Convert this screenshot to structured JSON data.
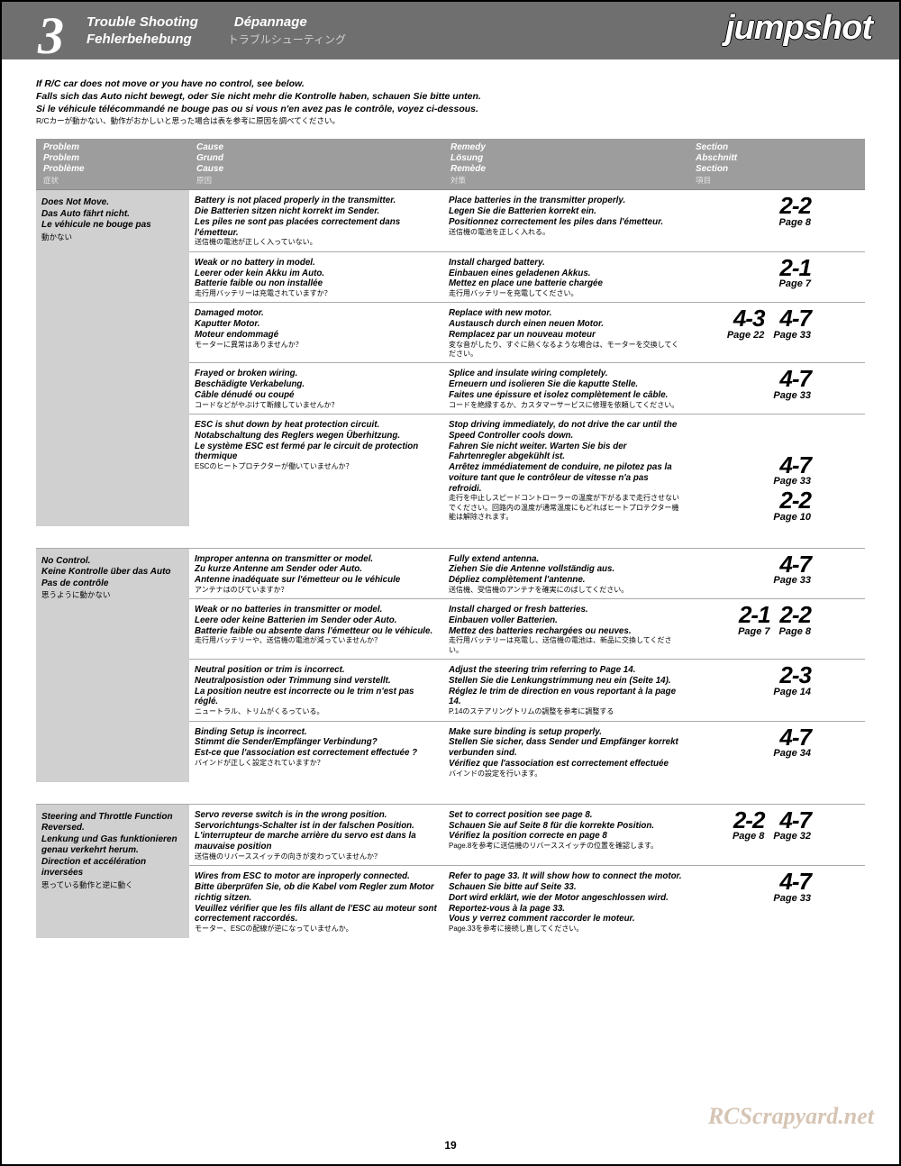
{
  "header": {
    "number": "3",
    "titles_row1": [
      "Trouble Shooting",
      "Dépannage"
    ],
    "titles_row2": [
      "Fehlerbehebung",
      "トラブルシューティング"
    ],
    "logo": "jumpshot"
  },
  "intro": {
    "en": "If R/C car does not move or you have no control, see below.",
    "de": "Falls sich das Auto nicht bewegt, oder Sie nicht mehr die Kontrolle haben, schauen Sie bitte unten.",
    "fr": "Si le véhicule télécommandé ne bouge pas ou si vous n'en avez pas le contrôle, voyez ci-dessous.",
    "jp": "R/Cカーが動かない、動作がおかしいと思った場合は表を参考に原因を調べてください。"
  },
  "columns": {
    "problem": [
      "Problem",
      "Problem",
      "Problème",
      "症状"
    ],
    "cause": [
      "Cause",
      "Grund",
      "Cause",
      "原因"
    ],
    "remedy": [
      "Remedy",
      "Lösung",
      "Remède",
      "対策"
    ],
    "section": [
      "Section",
      "Abschnitt",
      "Section",
      "項目"
    ]
  },
  "groups": [
    {
      "problem": {
        "b": [
          "Does Not Move.",
          "Das Auto fährt nicht.",
          "Le véhicule ne bouge pas"
        ],
        "j": "動かない"
      },
      "rows": [
        {
          "cause": {
            "b": [
              "Battery is not placed properly in the transmitter.",
              "Die Batterien sitzen nicht korrekt im Sender.",
              "Les piles ne sont pas placées correctement dans l'émetteur."
            ],
            "j": "送信機の電池が正しく入っていない。"
          },
          "remedy": {
            "b": [
              "Place batteries in the transmitter properly.",
              "Legen Sie die Batterien korrekt ein.",
              "Positionnez correctement les piles dans l'émetteur."
            ],
            "j": "送信機の電池を正しく入れる。"
          },
          "sections": [
            {
              "num": "2-2",
              "page": "Page 8"
            }
          ]
        },
        {
          "cause": {
            "b": [
              "Weak or no battery in model.",
              "Leerer oder kein Akku im Auto.",
              "Batterie faible ou non installée"
            ],
            "j": "走行用バッテリーは充電されていますか？"
          },
          "remedy": {
            "b": [
              "Install charged battery.",
              "Einbauen eines geladenen Akkus.",
              "Mettez en place une batterie chargée"
            ],
            "j": "走行用バッテリーを充電してください。"
          },
          "sections": [
            {
              "num": "2-1",
              "page": "Page 7"
            }
          ]
        },
        {
          "cause": {
            "b": [
              "Damaged motor.",
              "Kaputter Motor.",
              "Moteur endommagé"
            ],
            "j": "モーターに異常はありませんか？"
          },
          "remedy": {
            "b": [
              "Replace with new motor.",
              "Austausch durch einen neuen Motor.",
              "Remplacez par un nouveau moteur"
            ],
            "j": "変な音がしたり、すぐに熱くなるような場合は、モーターを交換してください。"
          },
          "sections": [
            {
              "num": "4-3",
              "page": "Page 22"
            },
            {
              "num": "4-7",
              "page": "Page 33"
            }
          ]
        },
        {
          "cause": {
            "b": [
              "Frayed or broken wiring.",
              "Beschädigte Verkabelung.",
              "Câble dénudé ou coupé"
            ],
            "j": "コードなどがやぶけて断線していませんか？"
          },
          "remedy": {
            "b": [
              "Splice and insulate wiring completely.",
              "Erneuern und isolieren Sie die kaputte Stelle.",
              "Faites une épissure et isolez complètement le câble."
            ],
            "j": "コードを絶縁するか、カスタマーサービスに修理を依頼してください。"
          },
          "sections": [
            {
              "num": "4-7",
              "page": "Page 33"
            }
          ]
        },
        {
          "cause": {
            "b": [
              "ESC is shut down by heat protection circuit.",
              "Notabschaltung des Reglers wegen Überhitzung.",
              "Le système ESC est fermé par le circuit de protection thermique"
            ],
            "j": "ESCのヒートプロテクターが働いていませんか？"
          },
          "remedy": {
            "b": [
              "Stop driving immediately, do not drive the car until the Speed Controller cools down.",
              "Fahren Sie nicht weiter. Warten Sie bis der Fahrtenregler abgekühlt ist.",
              "Arrêtez immédiatement de conduire, ne pilotez pas la voiture tant que le contrôleur de vitesse n'a pas refroidi."
            ],
            "j": "走行を中止しスピードコントローラーの温度が下がるまで走行させないでください。回路内の温度が通常温度にもどればヒートプロテクター機能は解除されます。"
          },
          "sections": [
            {
              "num": "4-7",
              "page": "Page 33"
            },
            {
              "num": "2-2",
              "page": "Page 10"
            }
          ],
          "sections_stacked": true
        }
      ]
    },
    {
      "problem": {
        "b": [
          "No Control.",
          "Keine Kontrolle über das Auto Pas de contrôle"
        ],
        "j": "思うように動かない"
      },
      "rows": [
        {
          "cause": {
            "b": [
              "Improper antenna on transmitter or model.",
              "Zu kurze Antenne am Sender oder Auto.",
              "Antenne inadéquate sur l'émetteur ou le véhicule"
            ],
            "j": "アンテナはのびていますか？"
          },
          "remedy": {
            "b": [
              "Fully extend antenna.",
              "Ziehen Sie die Antenne vollständig aus.",
              "Dépliez complètement l'antenne."
            ],
            "j": "送信機、受信機のアンテナを確実にのばしてください。"
          },
          "sections": [
            {
              "num": "4-7",
              "page": "Page 33"
            }
          ]
        },
        {
          "cause": {
            "b": [
              "Weak or no batteries in transmitter or model.",
              "Leere oder keine Batterien im Sender oder Auto.",
              "Batterie faible ou absente dans l'émetteur ou le véhicule."
            ],
            "j": "走行用バッテリーや、送信機の電池が減っていませんか？"
          },
          "remedy": {
            "b": [
              "Install charged or fresh batteries.",
              "Einbauen voller Batterien.",
              "Mettez des batteries rechargées ou neuves."
            ],
            "j": "走行用バッテリーは充電し、送信機の電池は、新品に交換してください。"
          },
          "sections": [
            {
              "num": "2-1",
              "page": "Page 7"
            },
            {
              "num": "2-2",
              "page": "Page 8"
            }
          ]
        },
        {
          "cause": {
            "b": [
              "Neutral position or trim is incorrect.",
              "Neutralposistion oder Trimmung sind verstellt.",
              "La position neutre est incorrecte ou le trim n'est pas réglé."
            ],
            "j": "ニュートラル、トリムがくるっている。"
          },
          "remedy": {
            "b": [
              "Adjust the steering trim referring to Page 14.",
              "Stellen Sie die Lenkungstrimmung neu ein (Seite 14).",
              "Réglez le trim de direction en vous reportant à la page 14."
            ],
            "j": "P.14のステアリングトリムの調整を参考に調整する"
          },
          "sections": [
            {
              "num": "2-3",
              "page": "Page 14"
            }
          ]
        },
        {
          "cause": {
            "b": [
              "Binding Setup is incorrect.",
              "Stimmt die Sender/Empfänger Verbindung?",
              "Est-ce que l'association est correctement effectuée ?"
            ],
            "j": "バインドが正しく設定されていますか？"
          },
          "remedy": {
            "b": [
              "Make sure binding is setup properly.",
              "Stellen Sie sicher, dass Sender und Empfänger korrekt verbunden sind.",
              "Vérifiez que l'association est correctement effectuée"
            ],
            "j": "バインドの設定を行います。"
          },
          "sections": [
            {
              "num": "4-7",
              "page": "Page 34"
            }
          ]
        }
      ]
    },
    {
      "problem": {
        "b": [
          "Steering and Throttle Function Reversed.",
          "Lenkung und Gas funktionieren genau verkehrt herum.",
          "Direction et accélération inversées"
        ],
        "j": "思っている動作と逆に動く"
      },
      "rows": [
        {
          "cause": {
            "b": [
              "Servo reverse switch is in the wrong position.",
              "Servorichtungs-Schalter ist in der falschen Position.",
              "L'interrupteur de marche arrière du servo est dans la mauvaise position"
            ],
            "j": "送信機のリバーススイッチの向きが変わっていませんか？"
          },
          "remedy": {
            "b": [
              "Set to correct position see page 8.",
              "Schauen Sie auf Seite 8 für die korrekte Position.",
              "Vérifiez la position correcte en page 8"
            ],
            "j": "Page.8を参考に送信機のリバーススイッチの位置を確認します。"
          },
          "sections": [
            {
              "num": "2-2",
              "page": "Page 8"
            },
            {
              "num": "4-7",
              "page": "Page 32"
            }
          ]
        },
        {
          "cause": {
            "b": [
              "Wires from ESC to motor are inproperly connected.",
              "Bitte überprüfen Sie, ob die Kabel vom Regler zum Motor richtig sitzen.",
              "Veuillez vérifier que les fils allant de l'ESC au moteur sont correctement raccordés."
            ],
            "j": "モーター、ESCの配線が逆になっていませんか。"
          },
          "remedy": {
            "b": [
              "Refer to page 33. It will show how to connect the motor.",
              "Schauen Sie bitte auf Seite 33.",
              "Dort wird erklärt, wie der Motor angeschlossen wird.",
              "Reportez-vous à la page 33.",
              "Vous y verrez comment raccorder le moteur."
            ],
            "j": "Page.33を参考に接続し直してください。"
          },
          "sections": [
            {
              "num": "4-7",
              "page": "Page 33"
            }
          ]
        }
      ]
    }
  ],
  "watermark": "RCScrapyard.net",
  "page_number": "19"
}
